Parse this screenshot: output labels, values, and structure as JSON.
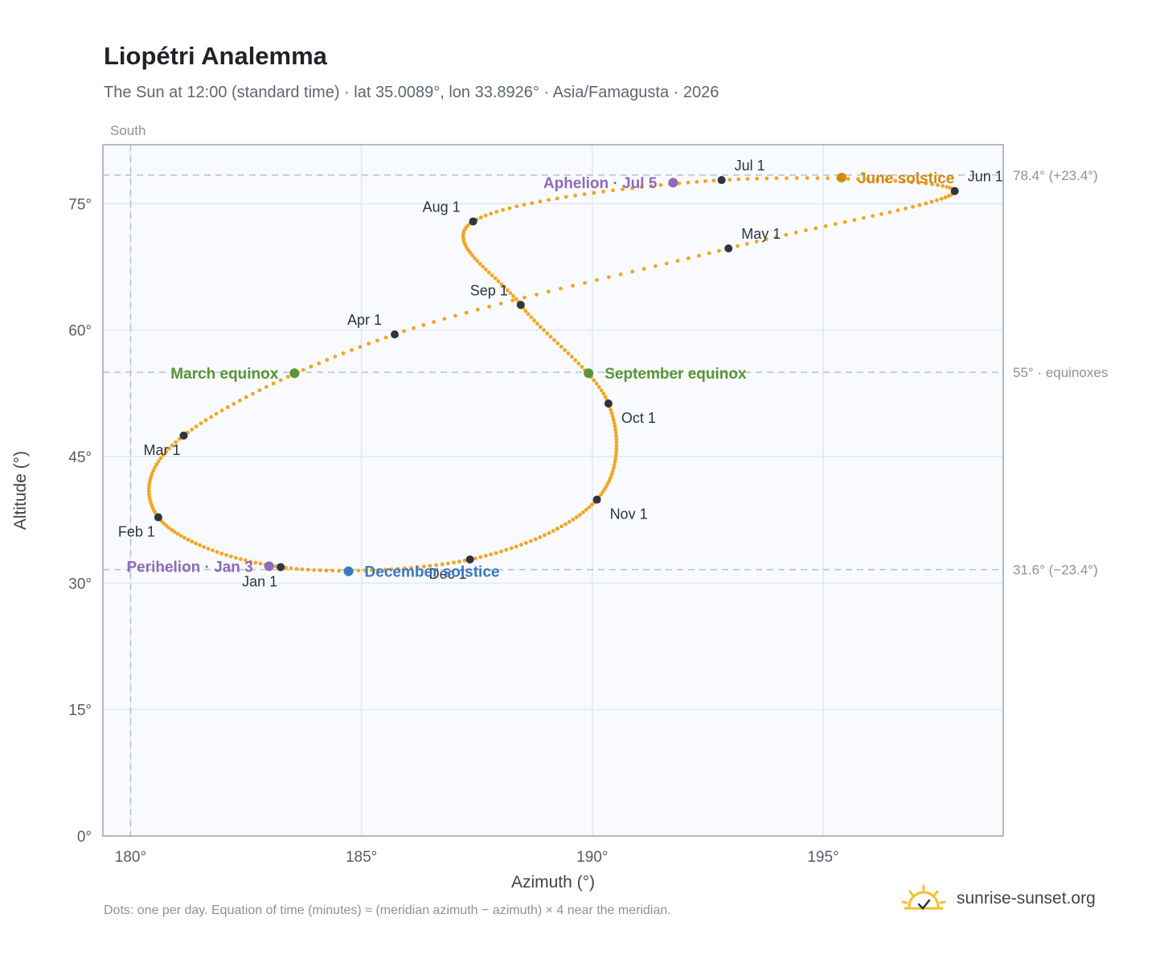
{
  "title": "Liopétri Analemma",
  "subtitle": "The Sun at 12:00 (standard time) · lat 35.0089°, lon 33.8926° · Asia/Famagusta · 2026",
  "footnote": "Dots: one per day. Equation of time (minutes) ≈ (meridian azimuth − azimuth) × 4 near the meridian.",
  "brand": {
    "text": "sunrise-sunset.org",
    "icon": "sun-logo-icon"
  },
  "colors": {
    "curve": "#f2a623",
    "month_marker": "#2e3440",
    "equinox": "#5a9437",
    "june_solstice": "#d18a0f",
    "december_solstice": "#3a78c0",
    "apsis": "#8c6bb8",
    "plot_bg": "#f8fafd",
    "grid": "#e3e8ee",
    "frame": "#9aa4b2",
    "reference": "#b6c0cc"
  },
  "chart_data": {
    "type": "scatter",
    "title": "Liopétri Analemma",
    "xlabel": "Azimuth (°)",
    "ylabel": "Altitude (°)",
    "xlim": [
      179.4,
      198.9
    ],
    "ylim": [
      0,
      82
    ],
    "xticks": [
      180,
      185,
      190,
      195
    ],
    "yticks": [
      0,
      15,
      30,
      45,
      60,
      75
    ],
    "tick_suffix": "°",
    "grid": true,
    "south_label": "South",
    "meridian_azimuth": 180,
    "reference_lines": [
      {
        "altitude": 78.4,
        "label": "78.4° (+23.4°)"
      },
      {
        "altitude": 55,
        "label": "55° · equinoxes"
      },
      {
        "altitude": 31.6,
        "label": "31.6° (−23.4°)"
      }
    ],
    "curve_anchors": [
      {
        "date": "Jan 1",
        "azimuth": 183.25,
        "altitude": 31.9
      },
      {
        "date": "Feb 1",
        "azimuth": 180.6,
        "altitude": 37.8
      },
      {
        "date": "Mar 1",
        "azimuth": 181.15,
        "altitude": 47.5
      },
      {
        "date": "Apr 1",
        "azimuth": 185.72,
        "altitude": 59.5
      },
      {
        "date": "May 1",
        "azimuth": 192.95,
        "altitude": 69.7
      },
      {
        "date": "Jun 1",
        "azimuth": 197.85,
        "altitude": 76.5
      },
      {
        "date": "Jul 1",
        "azimuth": 192.8,
        "altitude": 77.8
      },
      {
        "date": "Aug 1",
        "azimuth": 187.42,
        "altitude": 72.9
      },
      {
        "date": "Sep 1",
        "azimuth": 188.45,
        "altitude": 63.0
      },
      {
        "date": "Oct 1",
        "azimuth": 190.35,
        "altitude": 51.3
      },
      {
        "date": "Nov 1",
        "azimuth": 190.1,
        "altitude": 39.9
      },
      {
        "date": "Dec 1",
        "azimuth": 187.35,
        "altitude": 32.8
      }
    ],
    "month_markers": [
      {
        "label": "Jan 1",
        "azimuth": 183.25,
        "altitude": 31.9,
        "label_pos": "below-left"
      },
      {
        "label": "Feb 1",
        "azimuth": 180.6,
        "altitude": 37.8,
        "label_pos": "below-left"
      },
      {
        "label": "Mar 1",
        "azimuth": 181.15,
        "altitude": 47.5,
        "label_pos": "below-left"
      },
      {
        "label": "Apr 1",
        "azimuth": 185.72,
        "altitude": 59.5,
        "label_pos": "above-left"
      },
      {
        "label": "May 1",
        "azimuth": 192.95,
        "altitude": 69.7,
        "label_pos": "above-right"
      },
      {
        "label": "Jun 1",
        "azimuth": 197.85,
        "altitude": 76.5,
        "label_pos": "above-right"
      },
      {
        "label": "Jul 1",
        "azimuth": 192.8,
        "altitude": 77.8,
        "label_pos": "above-right"
      },
      {
        "label": "Aug 1",
        "azimuth": 187.42,
        "altitude": 72.9,
        "label_pos": "above-left"
      },
      {
        "label": "Sep 1",
        "azimuth": 188.45,
        "altitude": 63.0,
        "label_pos": "above-left"
      },
      {
        "label": "Oct 1",
        "azimuth": 190.35,
        "altitude": 51.3,
        "label_pos": "below-right"
      },
      {
        "label": "Nov 1",
        "azimuth": 190.1,
        "altitude": 39.9,
        "label_pos": "below-right"
      },
      {
        "label": "Dec 1",
        "azimuth": 187.35,
        "altitude": 32.8,
        "label_pos": "below-left"
      }
    ],
    "events": [
      {
        "label": "March equinox",
        "azimuth": 183.55,
        "altitude": 54.9,
        "kind": "equinox",
        "label_pos": "left"
      },
      {
        "label": "September equinox",
        "azimuth": 189.92,
        "altitude": 54.9,
        "kind": "equinox",
        "label_pos": "right"
      },
      {
        "label": "June solstice",
        "azimuth": 195.4,
        "altitude": 78.1,
        "kind": "june_solstice",
        "label_pos": "right"
      },
      {
        "label": "December solstice",
        "azimuth": 184.72,
        "altitude": 31.4,
        "kind": "december_solstice",
        "label_pos": "right"
      },
      {
        "label": "Perihelion · Jan 3",
        "azimuth": 183.0,
        "altitude": 32.0,
        "kind": "apsis",
        "label_pos": "left"
      },
      {
        "label": "Aphelion · Jul 5",
        "azimuth": 191.75,
        "altitude": 77.5,
        "kind": "apsis",
        "label_pos": "left"
      }
    ]
  }
}
